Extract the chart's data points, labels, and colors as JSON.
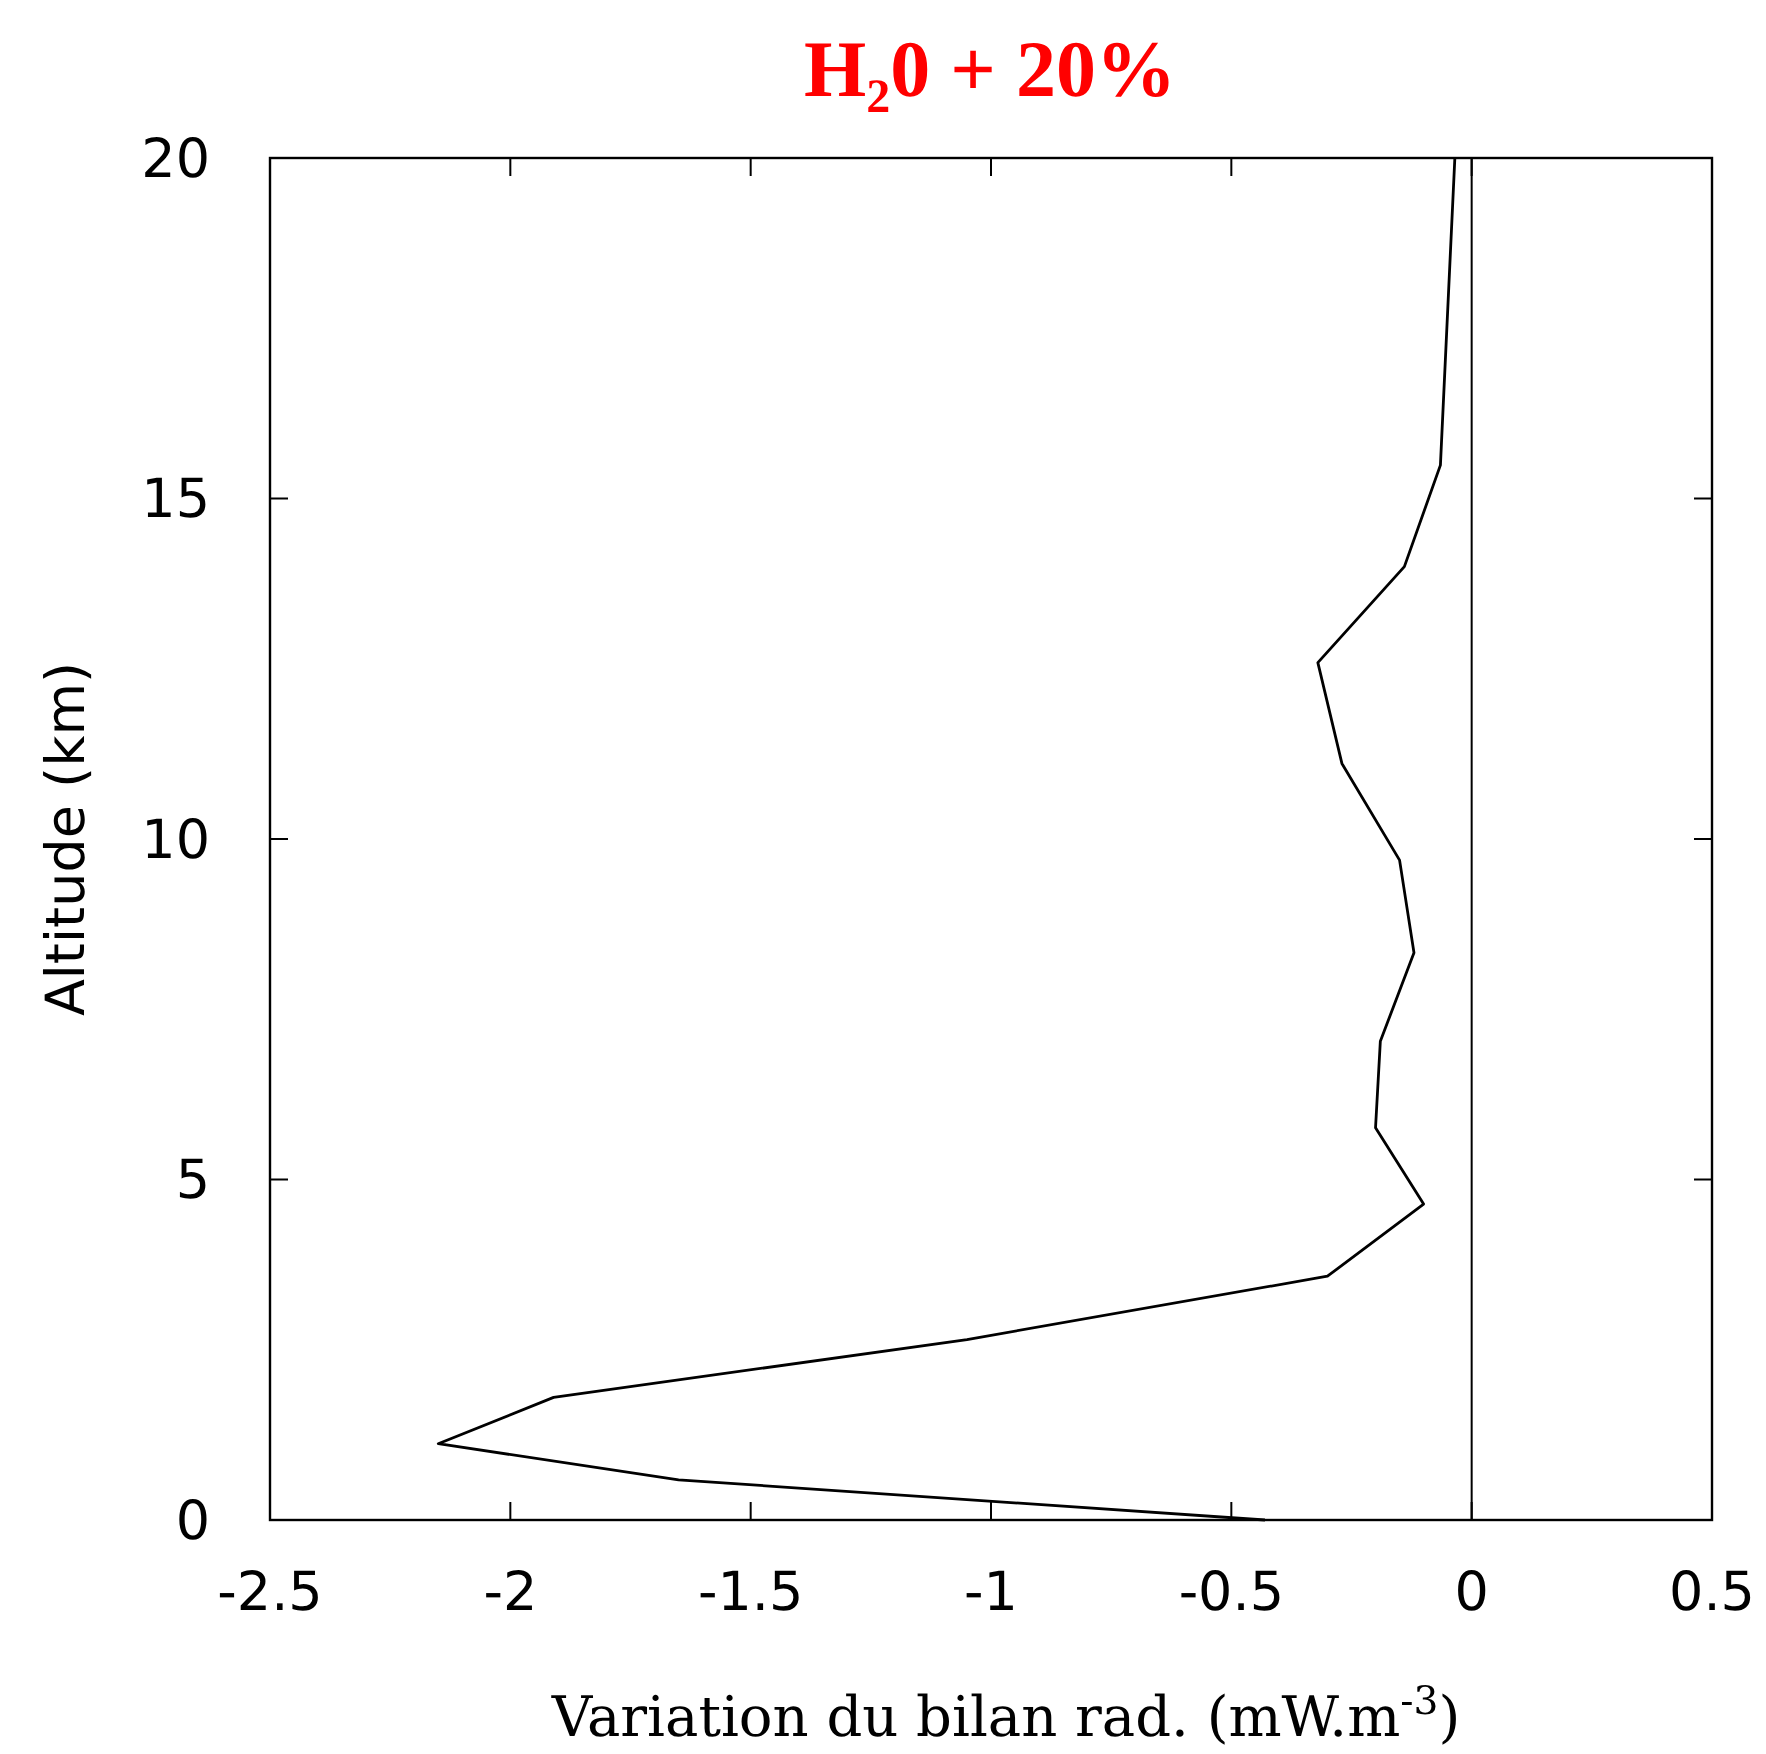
{
  "chart_data": {
    "type": "line",
    "title": "H₂0 + 20%",
    "xlabel": "Variation du bilan rad. (mW.m$^{-3}$)",
    "ylabel": "Altitude (km)",
    "series": [
      {
        "color": "#000000",
        "x": [
          -0.43,
          -1.65,
          -2.15,
          -1.91,
          -1.05,
          -0.3,
          -0.1,
          -0.2,
          -0.19,
          -0.12,
          -0.15,
          -0.27,
          -0.32,
          -0.14,
          -0.065,
          -0.035
        ],
        "values": [
          0,
          0.59,
          1.12,
          1.8,
          2.65,
          3.58,
          4.64,
          5.76,
          7.03,
          8.33,
          9.69,
          11.11,
          12.59,
          14.0,
          15.49,
          20.0
        ]
      }
    ],
    "xlim": [
      -2.5,
      0.5
    ],
    "xticks": [
      -2.5,
      -2,
      -1.5,
      -1,
      -0.5,
      0,
      0.5
    ],
    "ylim": [
      0,
      20
    ],
    "yticks": [
      0,
      5,
      10,
      15,
      20
    ],
    "ref_lines": [
      {
        "axis": "x",
        "value": 0,
        "color": "#000000"
      }
    ],
    "grid": false,
    "marker": "none",
    "line_style": "solid"
  }
}
